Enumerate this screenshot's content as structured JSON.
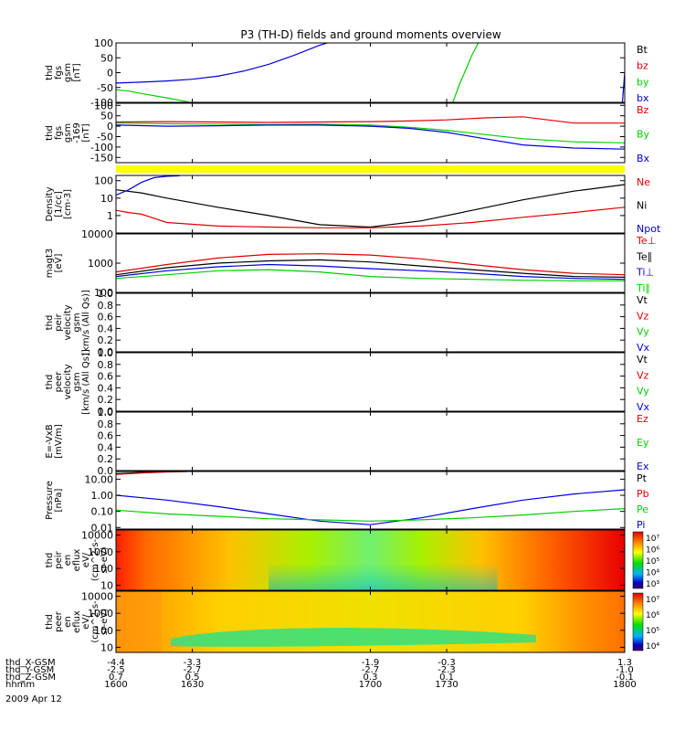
{
  "title": "P3 (TH-D) fields and ground moments overview",
  "colors": {
    "black": "#000000",
    "red": "#e00000",
    "green": "#00d000",
    "blue": "#0000e0",
    "yellow": "#ffff00"
  },
  "chart_data": [
    {
      "type": "line",
      "id": "fgs",
      "ylabel": [
        "thd",
        "fgs",
        "gsm",
        "[nT]"
      ],
      "ylim": [
        -100,
        100
      ],
      "yticks": [
        "100",
        "50",
        "0",
        "-50",
        "-100"
      ],
      "legend": [
        "Bt",
        "bz",
        "by",
        "bx"
      ],
      "legend_colors": [
        "#000000",
        "#e00000",
        "#00d000",
        "#0000e0"
      ],
      "series": [
        {
          "name": "bx",
          "color": "#0000e0",
          "x": [
            1600,
            1610,
            1620,
            1630,
            1640,
            1650,
            1660,
            1670,
            1680,
            1685
          ],
          "y": [
            -35,
            -32,
            -28,
            -22,
            -12,
            5,
            28,
            58,
            92,
            105
          ]
        },
        {
          "name": "by",
          "color": "#00d000",
          "x": [
            1600,
            1605,
            1610,
            1620,
            1628,
            1631
          ],
          "y": [
            -58,
            -62,
            -70,
            -85,
            -98,
            -110
          ]
        },
        {
          "name": "by",
          "color": "#00d000",
          "x": [
            1732,
            1735,
            1740,
            1743
          ],
          "y": [
            -110,
            -40,
            60,
            110
          ]
        },
        {
          "name": "bx",
          "color": "#0000e0",
          "x": [
            1799,
            1800
          ],
          "y": [
            -110,
            0
          ]
        }
      ]
    },
    {
      "type": "line",
      "id": "fgs169",
      "ylabel": [
        "thd",
        "fgs",
        "gsm",
        "-169",
        "[nT]"
      ],
      "ylim": [
        -175,
        110
      ],
      "yticks": [
        "100",
        "50",
        "0",
        "-50",
        "-100",
        "-150"
      ],
      "legend": [
        "Bz",
        "By",
        "Bx"
      ],
      "legend_colors": [
        "#e00000",
        "#00d000",
        "#0000e0"
      ],
      "series": [
        {
          "name": "Bz",
          "color": "#e00000",
          "x": [
            1600,
            1620,
            1640,
            1660,
            1680,
            1700,
            1715,
            1730,
            1745,
            1760,
            1780,
            1800
          ],
          "y": [
            20,
            22,
            20,
            18,
            20,
            22,
            25,
            30,
            40,
            45,
            15,
            15
          ]
        },
        {
          "name": "By",
          "color": "#00d000",
          "x": [
            1600,
            1620,
            1640,
            1660,
            1680,
            1700,
            1715,
            1730,
            1745,
            1760,
            1780,
            1800
          ],
          "y": [
            15,
            12,
            10,
            8,
            10,
            5,
            -5,
            -20,
            -40,
            -60,
            -75,
            -80
          ]
        },
        {
          "name": "Bx",
          "color": "#0000e0",
          "x": [
            1600,
            1620,
            1640,
            1660,
            1680,
            1700,
            1715,
            1730,
            1745,
            1760,
            1780,
            1800
          ],
          "y": [
            5,
            0,
            2,
            5,
            5,
            0,
            -10,
            -30,
            -60,
            -90,
            -105,
            -110
          ]
        }
      ]
    },
    {
      "type": "bar",
      "id": "flag",
      "color": "#ffff00"
    },
    {
      "type": "line",
      "id": "density",
      "scale": "log",
      "ylabel": [
        "Density",
        "[1/cc]",
        "[cm-3]"
      ],
      "ylim": [
        0.1,
        200
      ],
      "yticks": [
        "100",
        "10",
        "1"
      ],
      "ytick_values": [
        100,
        10,
        1
      ],
      "legend": [
        "Ne",
        "Ni",
        "Npot"
      ],
      "legend_colors": [
        "#e00000",
        "#000000",
        "#0000e0"
      ],
      "series": [
        {
          "name": "Ni",
          "color": "#000000",
          "x": [
            1600,
            1610,
            1620,
            1640,
            1660,
            1680,
            1700,
            1720,
            1740,
            1760,
            1780,
            1800
          ],
          "y": [
            30,
            20,
            10,
            3,
            1,
            0.3,
            0.22,
            0.5,
            2,
            8,
            25,
            60
          ]
        },
        {
          "name": "Ne",
          "color": "#e00000",
          "x": [
            1600,
            1605,
            1610,
            1615,
            1620,
            1640,
            1660,
            1680,
            1700,
            1720,
            1740,
            1760,
            1780,
            1800
          ],
          "y": [
            2,
            1.5,
            1.2,
            0.7,
            0.4,
            0.25,
            0.22,
            0.2,
            0.2,
            0.25,
            0.4,
            0.8,
            1.5,
            3
          ]
        },
        {
          "name": "Npot",
          "color": "#0000e0",
          "x": [
            1600,
            1605,
            1610,
            1615,
            1620,
            1625
          ],
          "y": [
            15,
            30,
            80,
            150,
            180,
            190
          ]
        }
      ]
    },
    {
      "type": "line",
      "id": "temp",
      "scale": "log",
      "ylabel": [
        "magt3",
        "[eV]"
      ],
      "ylim": [
        100,
        10000
      ],
      "yticks": [
        "10000",
        "1000",
        "100"
      ],
      "ytick_values": [
        10000,
        1000,
        100
      ],
      "legend": [
        "Te⊥",
        "Te∥",
        "Ti⊥",
        "Ti∥"
      ],
      "legend_colors": [
        "#e00000",
        "#000000",
        "#0000e0",
        "#00d000"
      ],
      "series": [
        {
          "name": "Te⊥",
          "color": "#e00000",
          "x": [
            1600,
            1620,
            1640,
            1660,
            1680,
            1700,
            1720,
            1740,
            1760,
            1780,
            1800
          ],
          "y": [
            500,
            900,
            1500,
            2000,
            2100,
            1900,
            1400,
            900,
            600,
            450,
            400
          ]
        },
        {
          "name": "Te∥",
          "color": "#000000",
          "x": [
            1600,
            1620,
            1640,
            1660,
            1680,
            1700,
            1720,
            1740,
            1760,
            1780,
            1800
          ],
          "y": [
            400,
            700,
            1000,
            1200,
            1300,
            1100,
            800,
            600,
            450,
            350,
            330
          ]
        },
        {
          "name": "Ti⊥",
          "color": "#0000e0",
          "x": [
            1600,
            1620,
            1640,
            1660,
            1680,
            1700,
            1720,
            1740,
            1760,
            1780,
            1800
          ],
          "y": [
            350,
            550,
            750,
            900,
            800,
            650,
            550,
            450,
            350,
            300,
            280
          ]
        },
        {
          "name": "Ti∥",
          "color": "#00d000",
          "x": [
            1600,
            1620,
            1640,
            1660,
            1680,
            1700,
            1720,
            1740,
            1760,
            1780,
            1800
          ],
          "y": [
            300,
            400,
            550,
            600,
            500,
            350,
            300,
            280,
            260,
            250,
            250
          ]
        }
      ]
    },
    {
      "type": "line",
      "id": "peir_v",
      "ylabel": [
        "thd",
        "peir",
        "velocity",
        "gsm",
        "[km/s (All Qs)]"
      ],
      "ylim": [
        0,
        1
      ],
      "yticks": [
        "1.0",
        "0.8",
        "0.6",
        "0.4",
        "0.2",
        "0.0"
      ],
      "legend": [
        "Vt",
        "Vz",
        "Vy",
        "Vx"
      ],
      "legend_colors": [
        "#000000",
        "#e00000",
        "#00d000",
        "#0000e0"
      ],
      "series": []
    },
    {
      "type": "line",
      "id": "peer_v",
      "ylabel": [
        "thd",
        "peer",
        "velocity",
        "gsm",
        "[km/s (All Qs)]"
      ],
      "ylim": [
        0,
        1
      ],
      "yticks": [
        "1.0",
        "0.8",
        "0.6",
        "0.4",
        "0.2",
        "0.0"
      ],
      "legend": [
        "Vt",
        "Vz",
        "Vy",
        "Vx"
      ],
      "legend_colors": [
        "#000000",
        "#e00000",
        "#00d000",
        "#0000e0"
      ],
      "series": []
    },
    {
      "type": "line",
      "id": "efield",
      "ylabel": [
        "E=-VxB",
        "[mV/m]"
      ],
      "ylim": [
        0,
        1
      ],
      "yticks": [
        "1.0",
        "0.8",
        "0.6",
        "0.4",
        "0.2",
        "0.0"
      ],
      "legend": [
        "Ez",
        "Ey",
        "Ex"
      ],
      "legend_colors": [
        "#e00000",
        "#00d000",
        "#0000e0"
      ],
      "series": []
    },
    {
      "type": "line",
      "id": "pressure",
      "scale": "log",
      "ylabel": [
        "Pressure",
        "[nPa]"
      ],
      "ylim": [
        0.008,
        30
      ],
      "yticks": [
        "10.00",
        "1.00",
        "0.10",
        "0.01"
      ],
      "ytick_values": [
        10,
        1,
        0.1,
        0.01
      ],
      "legend": [
        "Pt",
        "Pb",
        "Pe",
        "Pi"
      ],
      "legend_colors": [
        "#000000",
        "#e00000",
        "#00d000",
        "#0000e0"
      ],
      "series": [
        {
          "name": "Pt",
          "color": "#000000",
          "x": [
            1600,
            1610,
            1620,
            1628
          ],
          "y": [
            22,
            26,
            30,
            32
          ]
        },
        {
          "name": "Pb",
          "color": "#e00000",
          "x": [
            1600,
            1610,
            1620,
            1628
          ],
          "y": [
            20,
            24,
            28,
            30
          ]
        },
        {
          "name": "Pi",
          "color": "#0000e0",
          "x": [
            1600,
            1620,
            1640,
            1660,
            1680,
            1700,
            1720,
            1740,
            1760,
            1780,
            1800
          ],
          "y": [
            1.0,
            0.5,
            0.2,
            0.07,
            0.025,
            0.015,
            0.04,
            0.15,
            0.5,
            1.2,
            2.2
          ]
        },
        {
          "name": "Pe",
          "color": "#00d000",
          "x": [
            1600,
            1620,
            1640,
            1660,
            1680,
            1700,
            1720,
            1740,
            1760,
            1780,
            1800
          ],
          "y": [
            0.12,
            0.07,
            0.05,
            0.035,
            0.03,
            0.025,
            0.03,
            0.04,
            0.06,
            0.1,
            0.15
          ]
        }
      ]
    },
    {
      "type": "heatmap",
      "id": "peir_en",
      "ylabel": [
        "thd",
        "peir",
        "en",
        "eflux",
        "eV/",
        "(cm^2-s-",
        "sr-eV)"
      ],
      "yticks": [
        "10000",
        "1000",
        "100",
        "10"
      ],
      "cbar_ticks": [
        "10⁷",
        "10⁶",
        "10⁵",
        "10⁴",
        "10³"
      ]
    },
    {
      "type": "heatmap",
      "id": "peer_en",
      "ylabel": [
        "thd",
        "peer",
        "en",
        "eflux",
        "eV/",
        "(cm^2-s-",
        "sr-eV)"
      ],
      "yticks": [
        "10000",
        "1000",
        "100",
        "10"
      ],
      "cbar_ticks": [
        "10⁷",
        "10⁶",
        "10⁵",
        "10⁴"
      ]
    }
  ],
  "xaxis": {
    "rows": [
      {
        "label": "thd_X-GSM",
        "values": [
          "-4.4",
          "-3.3",
          "-1.9",
          "-0.3",
          "1.3"
        ]
      },
      {
        "label": "thd_Y-GSM",
        "values": [
          "-2.5",
          "-2.7",
          "-2.7",
          "-2.3",
          "-1.0"
        ]
      },
      {
        "label": "thd_Z-GSM",
        "values": [
          "0.7",
          "0.5",
          "0.3",
          "0.1",
          "-0.1"
        ]
      },
      {
        "label": "hhmm",
        "values": [
          "1600",
          "1630",
          "1700",
          "1730",
          "1800"
        ]
      }
    ],
    "date": "2009 Apr 12"
  }
}
